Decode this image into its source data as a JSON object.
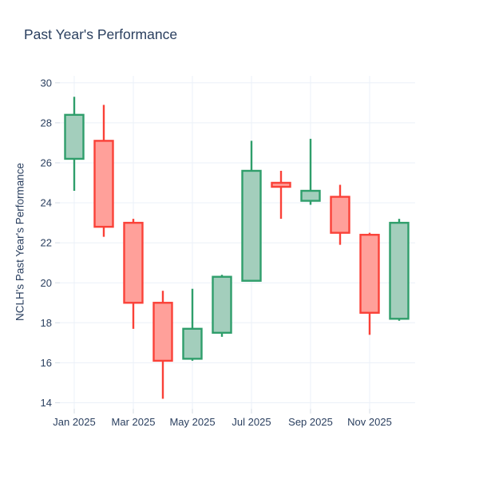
{
  "chart_data": {
    "type": "candlestick",
    "title": "Past Year's Performance",
    "xlabel": "",
    "ylabel": "NCLH's Past Year's Performance",
    "x": [
      "Jan 2025",
      "Feb 2025",
      "Mar 2025",
      "Apr 2025",
      "May 2025",
      "Jun 2025",
      "Jul 2025",
      "Aug 2025",
      "Sep 2025",
      "Oct 2025",
      "Nov 2025",
      "Dec 2025"
    ],
    "open": [
      26.2,
      27.1,
      23.0,
      19.0,
      16.2,
      17.5,
      20.1,
      25.0,
      24.1,
      24.3,
      22.4,
      18.2
    ],
    "high": [
      29.3,
      28.9,
      23.2,
      19.6,
      19.7,
      20.4,
      27.1,
      25.6,
      27.2,
      24.9,
      22.5,
      23.2
    ],
    "low": [
      24.6,
      22.3,
      17.7,
      14.2,
      16.1,
      17.3,
      20.1,
      23.2,
      23.9,
      21.9,
      17.4,
      18.1
    ],
    "close": [
      28.4,
      22.8,
      19.0,
      16.1,
      17.7,
      20.3,
      25.6,
      24.8,
      24.6,
      22.5,
      18.5,
      23.0
    ],
    "xtick_labels": [
      "Jan 2025",
      "Mar 2025",
      "May 2025",
      "Jul 2025",
      "Sep 2025",
      "Nov 2025"
    ],
    "xtick_slots": [
      0,
      2,
      4,
      6,
      8,
      10
    ],
    "yticks": [
      14,
      16,
      18,
      20,
      22,
      24,
      26,
      28,
      30
    ],
    "ylim": [
      13.7,
      30.35
    ],
    "grid": true,
    "legend": false,
    "colors": {
      "increasing_line": "#2f9e6b",
      "increasing_fill": "#a3cebc",
      "decreasing_line": "#fa4138",
      "decreasing_fill": "#ffa09a",
      "gridline": "#ebf0f8",
      "tick_mark": "#d4dce6",
      "text": "#2a3f5f",
      "background": "#ffffff"
    }
  }
}
